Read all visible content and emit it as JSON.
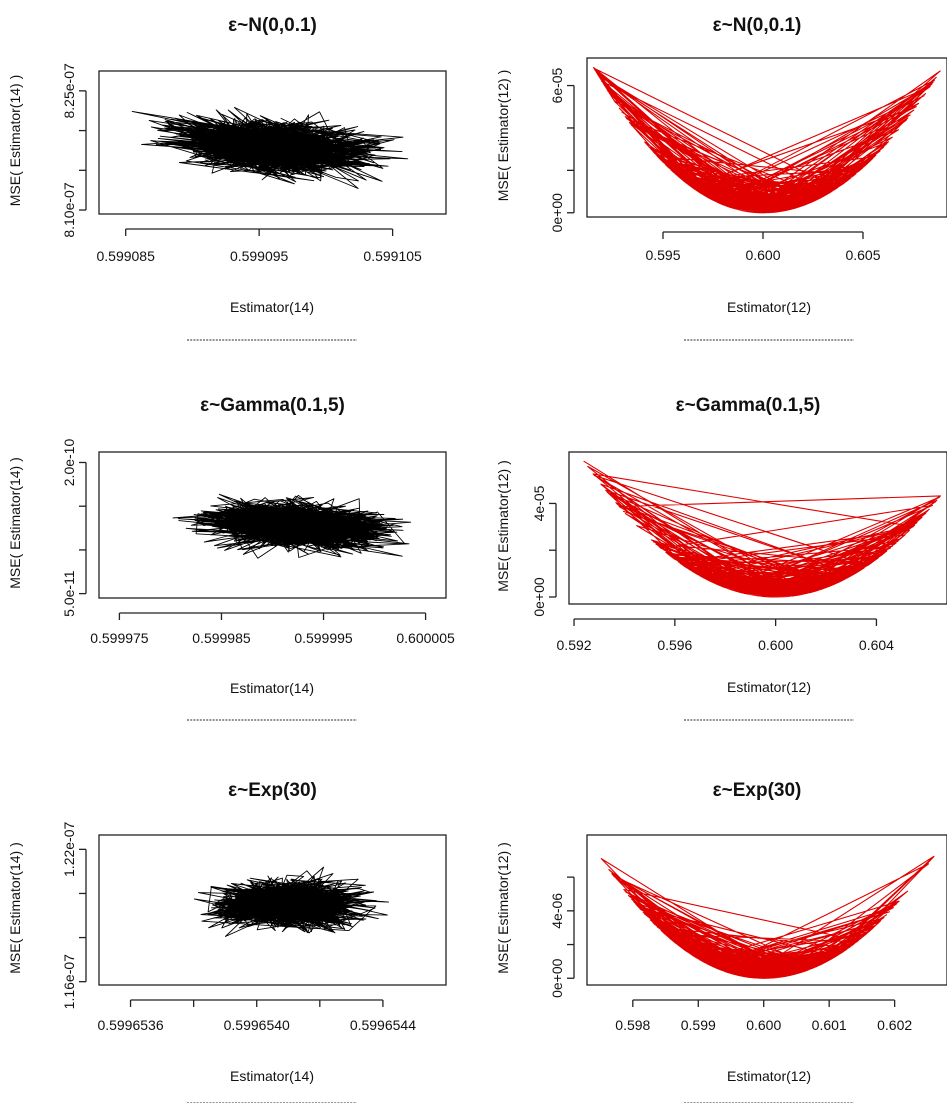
{
  "chart_data": [
    {
      "type": "line",
      "title": "ε~N(0,0.1)",
      "xlabel": "Estimator(14)",
      "ylabel": "MSE( Estimator(14) )",
      "xlim": [
        0.599083,
        0.599109
      ],
      "ylim": [
        8.095e-07,
        8.275e-07
      ],
      "x_ticks": [
        0.599085,
        0.599095,
        0.599105
      ],
      "x_tick_labels": [
        "0.599085",
        "0.599095",
        "0.599105"
      ],
      "y_ticks": [
        8.1e-07,
        8.15e-07,
        8.2e-07,
        8.25e-07
      ],
      "y_tick_labels": [
        "8.10e-07",
        "",
        "",
        "8.25e-07"
      ],
      "series": [
        {
          "color": "#000000",
          "pattern": "noisy-cloud",
          "x_center": 0.599096,
          "x_spread": 5.5e-06,
          "y_center": 8.18e-07,
          "y_spread": 2.6e-09,
          "tilt": -0.32,
          "x": [
            0.599084,
            0.599087,
            0.59909,
            0.599093,
            0.599096,
            0.599099,
            0.599102,
            0.599105,
            0.599107
          ],
          "y": [
            8.205e-07,
            8.2e-07,
            8.19e-07,
            8.18e-07,
            8.17e-07,
            8.16e-07,
            8.15e-07,
            8.14e-07,
            8.13e-07
          ]
        }
      ]
    },
    {
      "type": "line",
      "title": "ε~N(0,0.1)",
      "xlabel": "Estimator(12)",
      "ylabel": "MSE( Estimator(12) )",
      "xlim": [
        0.5912,
        0.6092
      ],
      "ylim": [
        -2e-06,
        7.3e-05
      ],
      "x_ticks": [
        0.595,
        0.6,
        0.605
      ],
      "x_tick_labels": [
        "0.595",
        "0.600",
        "0.605"
      ],
      "y_ticks": [
        0,
        2e-05,
        4e-05,
        6e-05
      ],
      "y_tick_labels": [
        "0e+00",
        "",
        "",
        "6e-05"
      ],
      "series": [
        {
          "color": "#e00000",
          "pattern": "parabola",
          "vertex_x": 0.6,
          "x_min": 0.5915,
          "x_max": 0.609,
          "y_at_min": 6.9e-05,
          "y_at_max": 6.9e-05,
          "x": [
            0.5915,
            0.594,
            0.596,
            0.598,
            0.6,
            0.602,
            0.604,
            0.606,
            0.609
          ],
          "y": [
            6.9e-05,
            3.6e-05,
            1.6e-05,
            4e-06,
            0.0,
            4e-06,
            1.6e-05,
            3.6e-05,
            6.9e-05
          ]
        }
      ]
    },
    {
      "type": "line",
      "title": "ε~Gamma(0.1,5)",
      "xlabel": "Estimator(14)",
      "ylabel": "MSE( Estimator(14) )",
      "xlim": [
        0.599973,
        0.600007
      ],
      "ylim": [
        4.5e-11,
        2.12e-10
      ],
      "x_ticks": [
        0.599975,
        0.599985,
        0.599995,
        0.600005
      ],
      "x_tick_labels": [
        "0.599975",
        "0.599985",
        "0.599995",
        "0.600005"
      ],
      "y_ticks": [
        5e-11,
        1e-10,
        1.5e-10,
        2e-10
      ],
      "y_tick_labels": [
        "5.0e-11",
        "",
        "",
        "2.0e-10"
      ],
      "series": [
        {
          "color": "#000000",
          "pattern": "noisy-cloud",
          "x_center": 0.599992,
          "x_spread": 6.5e-06,
          "y_center": 1.28e-10,
          "y_spread": 2e-11,
          "tilt": -0.3,
          "x": [
            0.599976,
            0.59998,
            0.599985,
            0.59999,
            0.599995,
            0.6,
            0.600004
          ],
          "y": [
            1.55e-10,
            1.45e-10,
            1.38e-10,
            1.3e-10,
            1.2e-10,
            1.12e-10,
            1.05e-10
          ]
        }
      ]
    },
    {
      "type": "line",
      "title": "ε~Gamma(0.1,5)",
      "xlabel": "Estimator(12)",
      "ylabel": "MSE( Estimator(12) )",
      "xlim": [
        0.5918,
        0.6068
      ],
      "ylim": [
        -3e-06,
        6.2e-05
      ],
      "x_ticks": [
        0.592,
        0.596,
        0.6,
        0.604
      ],
      "x_tick_labels": [
        "0.592",
        "0.596",
        "0.600",
        "0.604"
      ],
      "y_ticks": [
        0,
        2e-05,
        4e-05
      ],
      "y_tick_labels": [
        "0e+00",
        "",
        "4e-05"
      ],
      "series": [
        {
          "color": "#e00000",
          "pattern": "parabola",
          "vertex_x": 0.6,
          "x_min": 0.5923,
          "x_max": 0.6066,
          "y_at_min": 5.95e-05,
          "y_at_max": 4.4e-05,
          "x": [
            0.5923,
            0.594,
            0.596,
            0.598,
            0.6,
            0.602,
            0.604,
            0.6066
          ],
          "y": [
            5.95e-05,
            3.6e-05,
            1.6e-05,
            4e-06,
            0.0,
            4e-06,
            1.6e-05,
            4.4e-05
          ]
        }
      ]
    },
    {
      "type": "line",
      "title": "ε~Exp(30)",
      "xlabel": "Estimator(14)",
      "ylabel": "MSE( Estimator(14) )",
      "xlim": [
        0.5996535,
        0.5996546
      ],
      "ylim": [
        1.1585e-07,
        1.2265e-07
      ],
      "x_ticks": [
        0.5996536,
        0.5996538,
        0.599654,
        0.5996542,
        0.5996544
      ],
      "x_tick_labels": [
        "0.5996536",
        "",
        "0.5996540",
        "",
        "0.5996544"
      ],
      "y_ticks": [
        1.16e-07,
        1.18e-07,
        1.2e-07,
        1.22e-07
      ],
      "y_tick_labels": [
        "1.16e-07",
        "",
        "",
        "1.22e-07"
      ],
      "series": [
        {
          "color": "#000000",
          "pattern": "noisy-cloud",
          "x_center": 0.5996541,
          "x_spread": 1.7e-07,
          "y_center": 1.195e-07,
          "y_spread": 8e-10,
          "tilt": 0.0,
          "x": [
            0.5996536,
            0.5996538,
            0.599654,
            0.5996542,
            0.5996544,
            0.5996546
          ],
          "y": [
            1.19e-07,
            1.195e-07,
            1.2e-07,
            1.195e-07,
            1.19e-07,
            1.195e-07
          ]
        }
      ]
    },
    {
      "type": "line",
      "title": "ε~Exp(30)",
      "xlabel": "Estimator(12)",
      "ylabel": "MSE( Estimator(12) )",
      "xlim": [
        0.5973,
        0.6028
      ],
      "ylim": [
        -4e-07,
        8.5e-06
      ],
      "x_ticks": [
        0.598,
        0.599,
        0.6,
        0.601,
        0.602
      ],
      "x_tick_labels": [
        "0.598",
        "0.599",
        "0.600",
        "0.601",
        "0.602"
      ],
      "y_ticks": [
        0,
        2e-06,
        4e-06,
        6e-06
      ],
      "y_tick_labels": [
        "0e+00",
        "",
        "4e-06",
        ""
      ],
      "series": [
        {
          "color": "#e00000",
          "pattern": "parabola",
          "vertex_x": 0.6,
          "x_min": 0.5975,
          "x_max": 0.6027,
          "y_at_min": 7.2e-06,
          "y_at_max": 7.8e-06,
          "x": [
            0.5975,
            0.598,
            0.599,
            0.6,
            0.601,
            0.602,
            0.6027
          ],
          "y": [
            7.2e-06,
            4.7e-06,
            1.2e-06,
            0.0,
            1.2e-06,
            4.7e-06,
            7.8e-06
          ]
        }
      ]
    }
  ]
}
